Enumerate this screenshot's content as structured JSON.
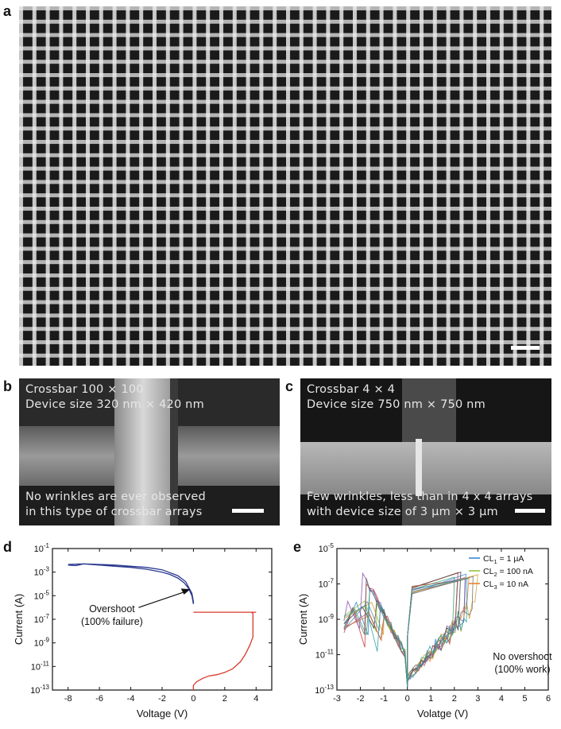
{
  "panels": {
    "a": {
      "letter": "a"
    },
    "b": {
      "letter": "b",
      "title_line1": "Crossbar 100 × 100",
      "title_line2": "Device size 320 nm × 420 nm",
      "caption_line1": "No wrinkles are ever observed",
      "caption_line2": "in this type of crossbar arrays"
    },
    "c": {
      "letter": "c",
      "title_line1": "Crossbar 4 × 4",
      "title_line2": "Device size 750 nm × 750 nm",
      "caption_line1": "Few wrinkles, less than in 4 x 4 arrays",
      "caption_line2": "with device size of 3 µm × 3 µm"
    },
    "d": {
      "letter": "d",
      "annotation_line1": "Overshoot",
      "annotation_line2": "(100% failure)"
    },
    "e": {
      "letter": "e",
      "annotation_line1": "No overshoot",
      "annotation_line2": "(100% work)"
    }
  },
  "chart_data": [
    {
      "id": "d",
      "type": "line",
      "xlabel": "Voltage (V)",
      "ylabel": "Current (A)",
      "xlim": [
        -9,
        5
      ],
      "ylim_log10": [
        -13,
        -1
      ],
      "xticks": [
        "-8",
        "-6",
        "-4",
        "-2",
        "0",
        "2",
        "4"
      ],
      "yticks": [
        "10-13",
        "10-11",
        "10-9",
        "10-7",
        "10-5",
        "10-3",
        "10-1"
      ],
      "log_y": true,
      "series": [
        {
          "color": "#2b3a8f",
          "x": [
            -8,
            -7.5,
            -7,
            -6,
            -5,
            -4,
            -3,
            -2,
            -1.5,
            -1,
            -0.6,
            -0.3,
            -0.1,
            0,
            0,
            -0.1,
            -0.5,
            -1,
            -2,
            -3,
            -4,
            -5,
            -6,
            -7,
            -8
          ],
          "y": [
            -2.4,
            -2.45,
            -2.3,
            -2.4,
            -2.5,
            -2.6,
            -2.75,
            -3.0,
            -3.2,
            -3.5,
            -3.9,
            -4.4,
            -5.0,
            -5.7,
            -5.5,
            -4.8,
            -3.8,
            -3.3,
            -2.8,
            -2.6,
            -2.5,
            -2.4,
            -2.35,
            -2.3,
            -2.35
          ]
        },
        {
          "color": "#d83a2a",
          "x": [
            0,
            0,
            0.2,
            0.6,
            1.0,
            1.5,
            2.0,
            2.5,
            3.0,
            3.3,
            3.6,
            3.8,
            3.8,
            3.7,
            0,
            0,
            4
          ],
          "y": [
            -13,
            -12.6,
            -12.3,
            -12.0,
            -11.8,
            -11.7,
            -11.5,
            -11.2,
            -10.6,
            -10.0,
            -9.2,
            -8.5,
            -6.5,
            -6.4,
            -6.4,
            -6.4,
            -6.4
          ]
        }
      ]
    },
    {
      "id": "e",
      "type": "line",
      "xlabel": "Volatge (V)",
      "ylabel": "Current (A)",
      "xlim": [
        -3,
        6
      ],
      "ylim_log10": [
        -13,
        -5
      ],
      "xticks": [
        "-3",
        "-2",
        "-1",
        "0",
        "1",
        "2",
        "3",
        "4",
        "5",
        "6"
      ],
      "yticks": [
        "10-13",
        "10-11",
        "10-9",
        "10-7",
        "10-5"
      ],
      "log_y": true,
      "legend": [
        "CL1 = 1 µA",
        "CL2 = 100 nA",
        "CL3 = 10 nA"
      ],
      "legend_colors": [
        "#2f7dd3",
        "#8fbf3a",
        "#e07a2a"
      ],
      "series_colors": [
        "#2f7dd3",
        "#8fbf3a",
        "#e07a2a",
        "#c8373a",
        "#3a3a3a",
        "#3aa06a",
        "#8a4bb0",
        "#d0a030",
        "#5a8aa0",
        "#b05a5a",
        "#6f6f6f",
        "#2aa0a0"
      ]
    }
  ]
}
